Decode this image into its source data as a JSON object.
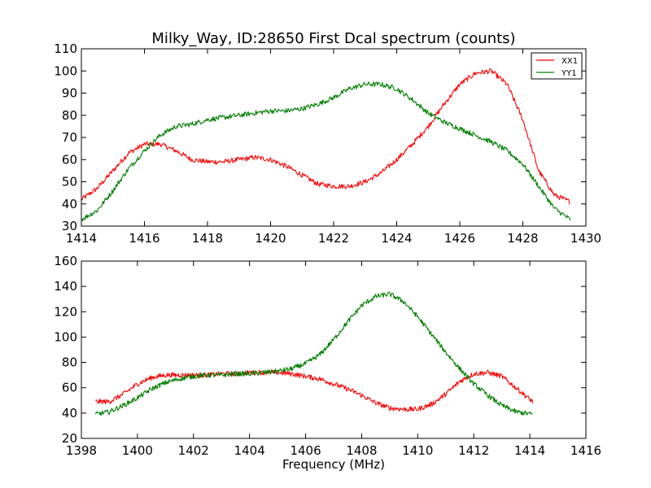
{
  "chart_data": [
    {
      "type": "line",
      "title": "Milky_Way, ID:28650 First Dcal spectrum (counts)",
      "xlabel": "",
      "ylabel": "",
      "xlim": [
        1414,
        1430
      ],
      "ylim": [
        30,
        110
      ],
      "xticks": [
        1414,
        1416,
        1418,
        1420,
        1422,
        1424,
        1426,
        1428,
        1430
      ],
      "yticks": [
        30,
        40,
        50,
        60,
        70,
        80,
        90,
        100,
        110
      ],
      "grid": false,
      "legend": {
        "placement": "top-right",
        "entries": [
          "XX1",
          "YY1"
        ]
      },
      "series": [
        {
          "name": "XX1",
          "color": "#ff0000",
          "x": [
            1414.0,
            1414.5,
            1415.0,
            1415.5,
            1416.0,
            1416.5,
            1417.0,
            1417.5,
            1418.0,
            1418.5,
            1419.0,
            1419.5,
            1420.0,
            1420.5,
            1421.0,
            1421.5,
            1422.0,
            1422.5,
            1423.0,
            1423.5,
            1424.0,
            1424.5,
            1425.0,
            1425.5,
            1426.0,
            1426.5,
            1427.0,
            1427.5,
            1428.0,
            1428.5,
            1429.0,
            1429.5
          ],
          "y": [
            42,
            47,
            55,
            63,
            67,
            67,
            64,
            60,
            59,
            59,
            60,
            61,
            60,
            57,
            53,
            49,
            48,
            48,
            50,
            54,
            60,
            67,
            75,
            85,
            94,
            99,
            100,
            94,
            78,
            55,
            44,
            41
          ]
        },
        {
          "name": "YY1",
          "color": "#008000",
          "x": [
            1414.0,
            1414.5,
            1415.0,
            1415.5,
            1416.0,
            1416.5,
            1417.0,
            1417.5,
            1418.0,
            1418.5,
            1419.0,
            1419.5,
            1420.0,
            1420.5,
            1421.0,
            1421.5,
            1422.0,
            1422.5,
            1423.0,
            1423.5,
            1424.0,
            1424.5,
            1425.0,
            1425.5,
            1426.0,
            1426.5,
            1427.0,
            1427.5,
            1428.0,
            1428.5,
            1429.0,
            1429.5
          ],
          "y": [
            33,
            37,
            46,
            56,
            64,
            71,
            75,
            76,
            78,
            79,
            80,
            81,
            82,
            82,
            83,
            85,
            88,
            92,
            94,
            94,
            92,
            87,
            81,
            77,
            74,
            71,
            68,
            64,
            58,
            48,
            38,
            33
          ]
        }
      ]
    },
    {
      "type": "line",
      "title": "",
      "xlabel": "Frequency (MHz)",
      "ylabel": "",
      "xlim": [
        1398,
        1416
      ],
      "ylim": [
        20,
        160
      ],
      "xticks": [
        1398,
        1400,
        1402,
        1404,
        1406,
        1408,
        1410,
        1412,
        1414,
        1416
      ],
      "yticks": [
        20,
        40,
        60,
        80,
        100,
        120,
        140,
        160
      ],
      "grid": false,
      "series": [
        {
          "color": "#ff0000",
          "x": [
            1398.5,
            1399.0,
            1399.5,
            1400.0,
            1400.5,
            1401.0,
            1401.5,
            1402.0,
            1402.5,
            1403.0,
            1403.5,
            1404.0,
            1404.5,
            1405.0,
            1405.5,
            1406.0,
            1406.5,
            1407.0,
            1407.5,
            1408.0,
            1408.5,
            1409.0,
            1409.5,
            1410.0,
            1410.5,
            1411.0,
            1411.5,
            1412.0,
            1412.5,
            1413.0,
            1413.5,
            1414.1
          ],
          "y": [
            49,
            49,
            55,
            63,
            68,
            70,
            70,
            70,
            70,
            71,
            71,
            72,
            72,
            72,
            71,
            69,
            67,
            63,
            59,
            54,
            48,
            44,
            43,
            43,
            47,
            55,
            65,
            71,
            72,
            69,
            60,
            49
          ]
        },
        {
          "color": "#008000",
          "x": [
            1398.5,
            1399.0,
            1399.5,
            1400.0,
            1400.5,
            1401.0,
            1401.5,
            1402.0,
            1402.5,
            1403.0,
            1403.5,
            1404.0,
            1404.5,
            1405.0,
            1405.5,
            1406.0,
            1406.5,
            1407.0,
            1407.5,
            1408.0,
            1408.5,
            1409.0,
            1409.5,
            1410.0,
            1410.5,
            1411.0,
            1411.5,
            1412.0,
            1412.5,
            1413.0,
            1413.5,
            1414.1
          ],
          "y": [
            39,
            41,
            46,
            52,
            59,
            64,
            67,
            69,
            70,
            70,
            71,
            71,
            72,
            73,
            75,
            79,
            86,
            98,
            112,
            125,
            132,
            134,
            128,
            116,
            102,
            88,
            75,
            63,
            54,
            46,
            41,
            39
          ]
        }
      ]
    }
  ]
}
